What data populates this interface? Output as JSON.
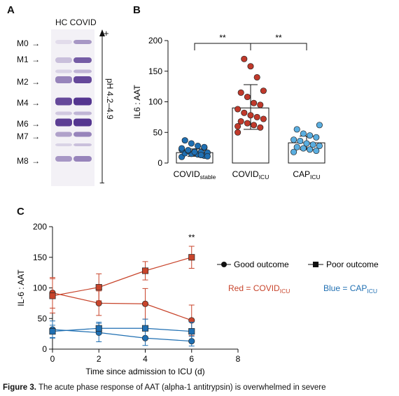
{
  "figure": {
    "caption_label": "Figure 3.",
    "caption_text": "The acute phase response of AAT (alpha-1 antitrypsin) is overwhelmed in severe"
  },
  "panel_a": {
    "letter": "A",
    "lane_header": "HC COVID",
    "ph_label": "pH 4.2–4.9",
    "plus": "+",
    "minus": "−",
    "markers": [
      {
        "label": "M0",
        "arrow": "→"
      },
      {
        "label": "M1",
        "arrow": "→"
      },
      {
        "label": "M2",
        "arrow": "→"
      },
      {
        "label": "M4",
        "arrow": "→"
      },
      {
        "label": "M6",
        "arrow": "→"
      },
      {
        "label": "M7",
        "arrow": "→"
      },
      {
        "label": "M8",
        "arrow": "→"
      }
    ],
    "band_color": "#4b2a8a"
  },
  "panel_b": {
    "letter": "B",
    "chart_data": {
      "type": "bar",
      "ylabel": "IL6 : AAT",
      "ylim": [
        0,
        200
      ],
      "yticks": [
        0,
        50,
        100,
        150,
        200
      ],
      "categories": [
        {
          "main": "COVID",
          "sub": "stable"
        },
        {
          "main": "COVID",
          "sub": "ICU"
        },
        {
          "main": "CAP",
          "sub": "ICU"
        }
      ],
      "values": [
        17,
        90,
        33
      ],
      "error": [
        [
          11,
          23
        ],
        [
          55,
          128
        ],
        [
          22,
          44
        ]
      ],
      "point_colors": [
        "#1f6fb2",
        "#c0392b",
        "#5aaee0"
      ],
      "points": [
        [
          10,
          12,
          14,
          15,
          16,
          17,
          18,
          19,
          20,
          22,
          25,
          28,
          32,
          37,
          11,
          13,
          18,
          21,
          24,
          26
        ],
        [
          50,
          58,
          62,
          65,
          68,
          72,
          75,
          78,
          82,
          88,
          95,
          98,
          108,
          115,
          118,
          140,
          158,
          170,
          60
        ],
        [
          18,
          20,
          22,
          24,
          26,
          28,
          30,
          32,
          36,
          38,
          42,
          45,
          48,
          55,
          62
        ]
      ],
      "significance": [
        {
          "between": [
            0,
            1
          ],
          "label": "**"
        },
        {
          "between": [
            1,
            2
          ],
          "label": "**"
        }
      ]
    }
  },
  "panel_c": {
    "letter": "C",
    "chart_data": {
      "type": "line",
      "xlabel": "Time since admission to ICU (d)",
      "ylabel": "IL-6 : AAT",
      "xlim": [
        0,
        8
      ],
      "ylim": [
        0,
        200
      ],
      "xticks": [
        0,
        2,
        4,
        6,
        8
      ],
      "yticks": [
        0,
        50,
        100,
        150,
        200
      ],
      "x": [
        0,
        2,
        4,
        6
      ],
      "series": [
        {
          "group": "COVID ICU",
          "outcome": "Good outcome",
          "marker": "circle",
          "color": "#c8442b",
          "values": [
            92,
            75,
            74,
            47
          ],
          "err": [
            25,
            20,
            25,
            25
          ]
        },
        {
          "group": "COVID ICU",
          "outcome": "Poor outcome",
          "marker": "square",
          "color": "#c8442b",
          "values": [
            87,
            101,
            128,
            150
          ],
          "err": [
            28,
            22,
            15,
            18
          ]
        },
        {
          "group": "CAP ICU",
          "outcome": "Good outcome",
          "marker": "circle",
          "color": "#1f6fb2",
          "values": [
            32,
            27,
            18,
            13
          ],
          "err": [
            14,
            15,
            12,
            8
          ]
        },
        {
          "group": "CAP ICU",
          "outcome": "Poor outcome",
          "marker": "square",
          "color": "#1f6fb2",
          "values": [
            29,
            34,
            34,
            29
          ],
          "err": [
            10,
            10,
            15,
            15
          ]
        }
      ],
      "annotation": {
        "x": 6,
        "label": "**"
      },
      "legend": {
        "good": "Good outcome",
        "poor": "Poor outcome",
        "red_text": "Red = COVID",
        "red_sub": "ICU",
        "blue_text": "Blue = CAP",
        "blue_sub": "ICU"
      }
    }
  }
}
